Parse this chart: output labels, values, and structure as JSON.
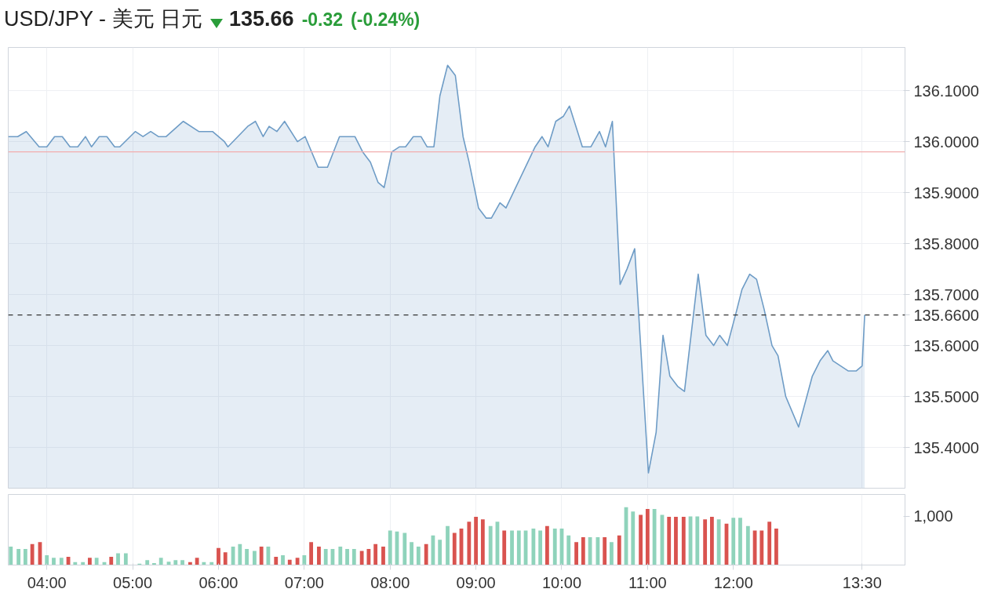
{
  "chart_data": [
    {
      "type": "area",
      "title": "USD/JPY - 美元 日元",
      "annotations": [
        "135.66",
        "-0.32",
        "(-0.24%)"
      ],
      "x": [
        3.55,
        3.66,
        3.76,
        3.91,
        4.0,
        4.09,
        4.18,
        4.27,
        4.36,
        4.45,
        4.52,
        4.61,
        4.7,
        4.79,
        4.85,
        5.03,
        5.12,
        5.21,
        5.3,
        5.39,
        5.59,
        5.77,
        5.93,
        6.07,
        6.11,
        6.34,
        6.43,
        6.52,
        6.59,
        6.68,
        6.77,
        6.92,
        7.01,
        7.16,
        7.27,
        7.41,
        7.59,
        7.68,
        7.77,
        7.86,
        7.93,
        8.02,
        8.11,
        8.18,
        8.27,
        8.36,
        8.43,
        8.51,
        8.58,
        8.67,
        8.76,
        8.85,
        8.92,
        9.03,
        9.12,
        9.18,
        9.28,
        9.35,
        9.69,
        9.77,
        9.84,
        9.93,
        10.02,
        10.09,
        10.24,
        10.34,
        10.44,
        10.51,
        10.59,
        10.68,
        10.76,
        10.85,
        11.01,
        11.1,
        11.18,
        11.26,
        11.35,
        11.43,
        11.59,
        11.68,
        11.77,
        11.84,
        11.93,
        12.04,
        12.1,
        12.19,
        12.27,
        12.36,
        12.45,
        12.52,
        12.61,
        12.76,
        12.92,
        13.01,
        13.1,
        13.16,
        13.25,
        13.34,
        13.43,
        13.5,
        13.53
      ],
      "series": [
        {
          "color": "#6e9cc6",
          "values": [
            136.01,
            136.01,
            136.02,
            135.99,
            135.99,
            136.01,
            136.01,
            135.99,
            135.99,
            136.01,
            135.99,
            136.01,
            136.01,
            135.99,
            135.99,
            136.02,
            136.01,
            136.02,
            136.01,
            136.01,
            136.04,
            136.02,
            136.02,
            136.0,
            135.99,
            136.03,
            136.04,
            136.01,
            136.03,
            136.02,
            136.04,
            136.0,
            136.01,
            135.95,
            135.95,
            136.01,
            136.01,
            135.98,
            135.96,
            135.92,
            135.91,
            135.98,
            135.99,
            135.99,
            136.01,
            136.01,
            135.99,
            135.99,
            136.09,
            136.15,
            136.13,
            136.01,
            135.96,
            135.87,
            135.85,
            135.85,
            135.88,
            135.87,
            135.99,
            136.01,
            135.99,
            136.04,
            136.05,
            136.07,
            135.99,
            135.99,
            136.02,
            135.99,
            136.04,
            135.72,
            135.75,
            135.79,
            135.35,
            135.43,
            135.62,
            135.54,
            135.52,
            135.51,
            135.74,
            135.62,
            135.6,
            135.62,
            135.6,
            135.67,
            135.71,
            135.74,
            135.73,
            135.67,
            135.6,
            135.58,
            135.5,
            135.44,
            135.54,
            135.57,
            135.59,
            135.57,
            135.56,
            135.55,
            135.55,
            135.56,
            135.66
          ]
        }
      ],
      "xlim": [
        3.55,
        14.0
      ],
      "ylim": [
        135.32,
        136.185
      ],
      "xticks": [
        {
          "value": 4,
          "label": null
        },
        {
          "value": 5,
          "label": null
        },
        {
          "value": 6,
          "label": null
        },
        {
          "value": 7,
          "label": null
        },
        {
          "value": 8,
          "label": null
        },
        {
          "value": 9,
          "label": null
        },
        {
          "value": 10,
          "label": null
        },
        {
          "value": 11,
          "label": null
        },
        {
          "value": 12,
          "label": null
        },
        {
          "value": 13.5,
          "label": null
        }
      ],
      "yticks": [
        {
          "value": 135.4,
          "label": "135.4000"
        },
        {
          "value": 135.5,
          "label": "135.5000"
        },
        {
          "value": 135.6,
          "label": "135.6000"
        },
        {
          "value": 135.7,
          "label": "135.7000"
        },
        {
          "value": 135.8,
          "label": "135.8000"
        },
        {
          "value": 135.9,
          "label": "135.9000"
        },
        {
          "value": 136.0,
          "label": "136.0000"
        },
        {
          "value": 136.1,
          "label": "136.1000"
        }
      ],
      "ref_lines": [
        {
          "axis": "y",
          "value": 135.98,
          "color": "#f2aeae",
          "line_style": "solid"
        },
        {
          "axis": "y",
          "value": 135.66,
          "label": "135.6600",
          "color": "#333333",
          "line_style": "dashed"
        }
      ],
      "grid": true,
      "tick_labels": "y"
    },
    {
      "type": "bar",
      "x": [
        3.58,
        3.67,
        3.75,
        3.83,
        3.92,
        4.0,
        4.08,
        4.17,
        4.25,
        4.33,
        4.42,
        4.5,
        4.58,
        4.67,
        4.75,
        4.83,
        4.92,
        5.0,
        5.08,
        5.17,
        5.25,
        5.33,
        5.42,
        5.5,
        5.58,
        5.67,
        5.75,
        5.83,
        5.92,
        6.0,
        6.08,
        6.17,
        6.25,
        6.33,
        6.42,
        6.5,
        6.58,
        6.67,
        6.75,
        6.83,
        6.92,
        7.0,
        7.08,
        7.17,
        7.25,
        7.33,
        7.42,
        7.5,
        7.58,
        7.67,
        7.75,
        7.83,
        7.92,
        8.0,
        8.08,
        8.17,
        8.25,
        8.33,
        8.42,
        8.5,
        8.58,
        8.67,
        8.75,
        8.83,
        8.92,
        9.0,
        9.08,
        9.17,
        9.25,
        9.33,
        9.42,
        9.5,
        9.58,
        9.67,
        9.75,
        9.83,
        9.92,
        10.0,
        10.08,
        10.17,
        10.25,
        10.33,
        10.42,
        10.5,
        10.58,
        10.67,
        10.75,
        10.83,
        10.92,
        11.0,
        11.08,
        11.17,
        11.25,
        11.33,
        11.42,
        11.5,
        11.58,
        11.67,
        11.75,
        11.83,
        11.92,
        12.0,
        12.08,
        12.17,
        12.25,
        12.33,
        12.42,
        12.5
      ],
      "values": [
        380,
        330,
        330,
        430,
        470,
        200,
        150,
        150,
        170,
        60,
        60,
        150,
        150,
        60,
        170,
        240,
        240,
        10,
        30,
        100,
        40,
        150,
        70,
        100,
        100,
        60,
        150,
        60,
        60,
        350,
        260,
        380,
        430,
        330,
        290,
        380,
        380,
        170,
        200,
        110,
        150,
        200,
        470,
        380,
        330,
        330,
        380,
        330,
        330,
        290,
        330,
        430,
        380,
        710,
        690,
        660,
        470,
        380,
        430,
        610,
        520,
        800,
        660,
        750,
        890,
        990,
        940,
        800,
        890,
        710,
        710,
        710,
        710,
        750,
        710,
        800,
        750,
        750,
        610,
        470,
        570,
        570,
        570,
        570,
        470,
        610,
        1190,
        1100,
        1030,
        1150,
        1150,
        1030,
        990,
        990,
        990,
        1000,
        1000,
        940,
        990,
        940,
        850,
        970,
        970,
        800,
        710,
        710,
        890,
        750
      ],
      "colors": [
        "#8fd3bb",
        "#8fd3bb",
        "#8fd3bb",
        "#d9534f",
        "#d9534f",
        "#8fd3bb",
        "#8fd3bb",
        "#8fd3bb",
        "#d9534f",
        "#8fd3bb",
        "#8fd3bb",
        "#d9534f",
        "#8fd3bb",
        "#8fd3bb",
        "#d9534f",
        "#8fd3bb",
        "#8fd3bb",
        "#8fd3bb",
        "#8fd3bb",
        "#8fd3bb",
        "#8fd3bb",
        "#8fd3bb",
        "#8fd3bb",
        "#8fd3bb",
        "#8fd3bb",
        "#d9534f",
        "#d9534f",
        "#8fd3bb",
        "#8fd3bb",
        "#d9534f",
        "#d9534f",
        "#8fd3bb",
        "#8fd3bb",
        "#8fd3bb",
        "#8fd3bb",
        "#d9534f",
        "#8fd3bb",
        "#d9534f",
        "#8fd3bb",
        "#d9534f",
        "#d9534f",
        "#8fd3bb",
        "#d9534f",
        "#d9534f",
        "#8fd3bb",
        "#8fd3bb",
        "#8fd3bb",
        "#8fd3bb",
        "#8fd3bb",
        "#d9534f",
        "#d9534f",
        "#d9534f",
        "#d9534f",
        "#8fd3bb",
        "#8fd3bb",
        "#8fd3bb",
        "#8fd3bb",
        "#8fd3bb",
        "#d9534f",
        "#8fd3bb",
        "#8fd3bb",
        "#8fd3bb",
        "#d9534f",
        "#d9534f",
        "#d9534f",
        "#d9534f",
        "#d9534f",
        "#8fd3bb",
        "#8fd3bb",
        "#d9534f",
        "#8fd3bb",
        "#8fd3bb",
        "#8fd3bb",
        "#8fd3bb",
        "#8fd3bb",
        "#d9534f",
        "#8fd3bb",
        "#8fd3bb",
        "#8fd3bb",
        "#d9534f",
        "#d9534f",
        "#8fd3bb",
        "#8fd3bb",
        "#d9534f",
        "#8fd3bb",
        "#d9534f",
        "#8fd3bb",
        "#8fd3bb",
        "#d9534f",
        "#d9534f",
        "#8fd3bb",
        "#8fd3bb",
        "#d9534f",
        "#d9534f",
        "#d9534f",
        "#8fd3bb",
        "#8fd3bb",
        "#d9534f",
        "#d9534f",
        "#8fd3bb",
        "#d9534f",
        "#8fd3bb",
        "#8fd3bb",
        "#8fd3bb",
        "#d9534f",
        "#d9534f",
        "#d9534f",
        "#d9534f"
      ],
      "xlim": [
        3.55,
        14.0
      ],
      "ylim": [
        0,
        1450
      ],
      "xticks": [
        {
          "value": 4,
          "label": "04:00"
        },
        {
          "value": 5,
          "label": "05:00"
        },
        {
          "value": 6,
          "label": "06:00"
        },
        {
          "value": 7,
          "label": "07:00"
        },
        {
          "value": 8,
          "label": "08:00"
        },
        {
          "value": 9,
          "label": "09:00"
        },
        {
          "value": 10,
          "label": "10:00"
        },
        {
          "value": 11,
          "label": "11:00"
        },
        {
          "value": 12,
          "label": "12:00"
        },
        {
          "value": 13.5,
          "label": "13:30"
        }
      ],
      "yticks": [
        {
          "value": 1000,
          "label": "1,000"
        }
      ],
      "grid": "x"
    }
  ]
}
